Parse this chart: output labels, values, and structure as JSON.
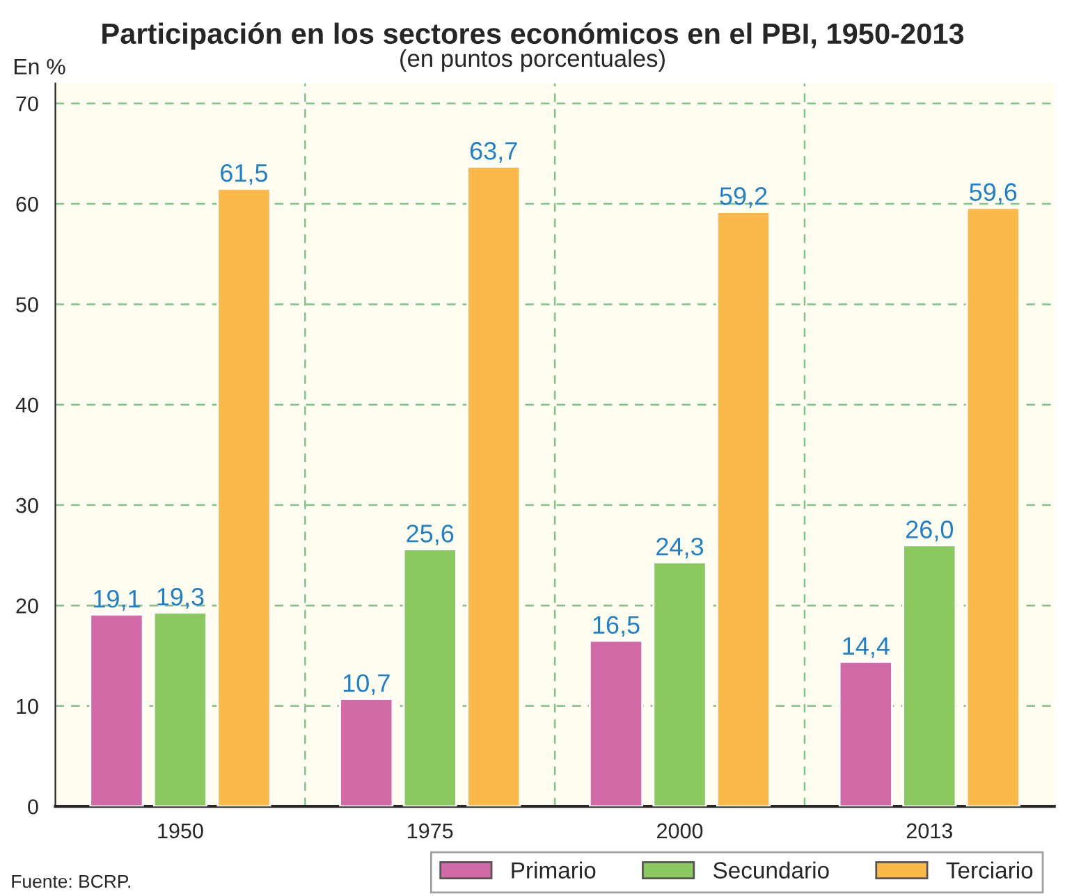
{
  "chart_data": {
    "type": "bar",
    "title": "Participación en los sectores económicos en el PBI, 1950-2013",
    "subtitle": "(en puntos porcentuales)",
    "ylabel": "En %",
    "categories": [
      "1950",
      "1975",
      "2000",
      "2013"
    ],
    "series": [
      {
        "name": "Primario",
        "color": "#d36aa8",
        "values": [
          19.1,
          10.7,
          16.5,
          14.4
        ],
        "value_labels": [
          "19,1",
          "10,7",
          "16,5",
          "14,4"
        ]
      },
      {
        "name": "Secundario",
        "color": "#8cc860",
        "values": [
          19.3,
          25.6,
          24.3,
          26.0
        ],
        "value_labels": [
          "19,3",
          "25,6",
          "24,3",
          "26,0"
        ]
      },
      {
        "name": "Terciario",
        "color": "#fbb94a",
        "values": [
          61.5,
          63.7,
          59.2,
          59.6
        ],
        "value_labels": [
          "61,5",
          "63,7",
          "59,2",
          "59,6"
        ]
      }
    ],
    "ylim": [
      0,
      72
    ],
    "yticks": [
      0,
      10,
      20,
      30,
      40,
      50,
      60,
      70
    ],
    "grid": true,
    "legend": "bottom right",
    "annotations": [
      "Fuente: BCRP."
    ]
  }
}
